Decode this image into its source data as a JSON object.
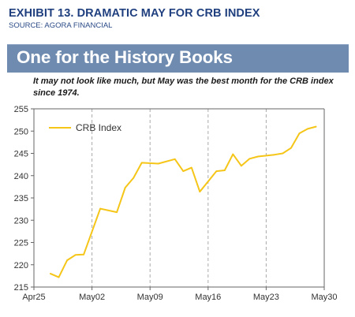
{
  "header": {
    "exhibit_title": "EXHIBIT 13. DRAMATIC MAY FOR CRB INDEX",
    "source": "SOURCE: AGORA FINANCIAL"
  },
  "banner": {
    "title": "One for the History Books",
    "background_color": "#6f8bb0"
  },
  "subtitle": "It may not look like much, but May was the best month for the CRB index since 1974.",
  "chart_data": {
    "type": "line",
    "title": "One for the History Books",
    "subtitle": "It may not look like much, but May was the best month for the CRB index since 1974.",
    "xlabel": "",
    "ylabel": "",
    "ylim": [
      215,
      255
    ],
    "xlim": [
      "Apr25",
      "May30"
    ],
    "y_ticks": [
      "215",
      "220",
      "225",
      "230",
      "235",
      "240",
      "245",
      "250",
      "255"
    ],
    "x_ticks": [
      "Apr25",
      "May02",
      "May09",
      "May16",
      "May23",
      "May30"
    ],
    "grid": "dashed vertical lines at weekly ticks",
    "legend_position": "top-left",
    "line_color": "#f5c518",
    "series": [
      {
        "name": "CRB Index",
        "x": [
          "2016-04-27",
          "2016-04-28",
          "2016-04-29",
          "2016-04-30",
          "2016-05-01",
          "2016-05-03",
          "2016-05-05",
          "2016-05-06",
          "2016-05-07",
          "2016-05-08",
          "2016-05-10",
          "2016-05-12",
          "2016-05-13",
          "2016-05-14",
          "2016-05-15",
          "2016-05-17",
          "2016-05-18",
          "2016-05-19",
          "2016-05-20",
          "2016-05-21",
          "2016-05-22",
          "2016-05-24",
          "2016-05-25",
          "2016-05-26",
          "2016-05-27",
          "2016-05-28",
          "2016-05-29"
        ],
        "values": [
          218.0,
          217.2,
          221.0,
          222.2,
          222.3,
          232.6,
          231.8,
          237.3,
          239.5,
          242.9,
          242.7,
          243.7,
          241.0,
          241.8,
          236.4,
          241.0,
          241.2,
          244.8,
          242.2,
          243.8,
          244.3,
          244.7,
          245.0,
          246.2,
          249.5,
          250.5,
          251.0
        ]
      }
    ]
  }
}
